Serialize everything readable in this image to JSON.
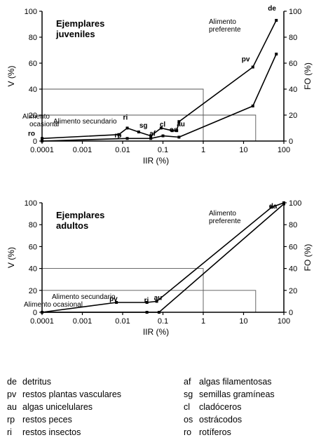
{
  "chart_data": [
    {
      "type": "line",
      "title": "Ejemplares juveniles",
      "x_scale": "log",
      "xlim": [
        0.0001,
        100
      ],
      "ylim": [
        0,
        100
      ],
      "y2lim": [
        0,
        100
      ],
      "xlabel": "IIR (%)",
      "ylabel": "V (%)",
      "y2label": "FO (%)",
      "x_ticks": [
        "0.0001",
        "0.001",
        "0.01",
        "0.1",
        "1",
        "10",
        "100"
      ],
      "y_ticks": [
        "0",
        "20",
        "40",
        "60",
        "80",
        "100"
      ],
      "zones": [
        {
          "label": "Alimento preferente",
          "x": 1,
          "y": 40
        },
        {
          "label": "Alimento secundario",
          "x": 20,
          "y": 20
        },
        {
          "label": "Alimento ocasional",
          "x": 20,
          "y": 0
        }
      ],
      "series": [
        {
          "axis": "V",
          "points": [
            {
              "label": "ro",
              "x": 0.0001,
              "y": 2
            },
            {
              "label": "rp",
              "x": 0.008,
              "y": 5
            },
            {
              "label": "ri",
              "x": 0.013,
              "y": 10
            },
            {
              "label": "sg",
              "x": 0.025,
              "y": 7
            },
            {
              "label": "af",
              "x": 0.05,
              "y": 4
            },
            {
              "label": "cl",
              "x": 0.09,
              "y": 10
            },
            {
              "label": "os",
              "x": 0.17,
              "y": 8
            },
            {
              "label": "au",
              "x": 0.22,
              "y": 8
            },
            {
              "label": "",
              "x": 0.25,
              "y": 15
            },
            {
              "label": "pv",
              "x": 17,
              "y": 57
            },
            {
              "label": "de",
              "x": 65,
              "y": 93
            }
          ]
        },
        {
          "axis": "FO",
          "points": [
            {
              "label": "",
              "x": 0.0001,
              "y": 0
            },
            {
              "label": "",
              "x": 0.013,
              "y": 2
            },
            {
              "label": "",
              "x": 0.05,
              "y": 2
            },
            {
              "label": "",
              "x": 0.1,
              "y": 4
            },
            {
              "label": "",
              "x": 0.25,
              "y": 3
            },
            {
              "label": "",
              "x": 17,
              "y": 27
            },
            {
              "label": "",
              "x": 65,
              "y": 67
            }
          ]
        }
      ]
    },
    {
      "type": "line",
      "title": "Ejemplares adultos",
      "x_scale": "log",
      "xlim": [
        0.0001,
        100
      ],
      "ylim": [
        0,
        100
      ],
      "y2lim": [
        0,
        100
      ],
      "xlabel": "IIR (%)",
      "ylabel": "V (%)",
      "y2label": "FO (%)",
      "x_ticks": [
        "0.0001",
        "0.001",
        "0.01",
        "0.1",
        "1",
        "10",
        "100"
      ],
      "y_ticks": [
        "0",
        "20",
        "40",
        "60",
        "80",
        "100"
      ],
      "zones": [
        {
          "label": "Alimento preferente",
          "x": 1,
          "y": 40
        },
        {
          "label": "Alimento secundario",
          "x": 20,
          "y": 20
        },
        {
          "label": "Alimento ocasional",
          "x": 10,
          "y": 0
        }
      ],
      "series": [
        {
          "axis": "V",
          "points": [
            {
              "label": "",
              "x": 0.0001,
              "y": 0
            },
            {
              "label": "pv",
              "x": 0.007,
              "y": 9
            },
            {
              "label": "ri",
              "x": 0.04,
              "y": 9
            },
            {
              "label": "au",
              "x": 0.07,
              "y": 10
            },
            {
              "label": "da",
              "x": 50,
              "y": 96
            },
            {
              "label": "",
              "x": 100,
              "y": 100
            }
          ]
        },
        {
          "axis": "FO",
          "points": [
            {
              "label": "",
              "x": 0.0001,
              "y": 0
            },
            {
              "label": "",
              "x": 0.04,
              "y": 0
            },
            {
              "label": "",
              "x": 0.08,
              "y": 0
            },
            {
              "label": "",
              "x": 100,
              "y": 99
            }
          ]
        }
      ]
    }
  ],
  "legend": {
    "left": [
      {
        "code": "de",
        "name": "detritus"
      },
      {
        "code": "pv",
        "name": "restos plantas vasculares"
      },
      {
        "code": "au",
        "name": "algas unicelulares"
      },
      {
        "code": "rp",
        "name": "restos peces"
      },
      {
        "code": "ri",
        "name": "restos insectos"
      }
    ],
    "right": [
      {
        "code": "af",
        "name": "algas filamentosas"
      },
      {
        "code": "sg",
        "name": "semillas gramíneas"
      },
      {
        "code": "cl",
        "name": "cladóceros"
      },
      {
        "code": "os",
        "name": "ostrácodos"
      },
      {
        "code": "ro",
        "name": "rotíferos"
      }
    ]
  }
}
